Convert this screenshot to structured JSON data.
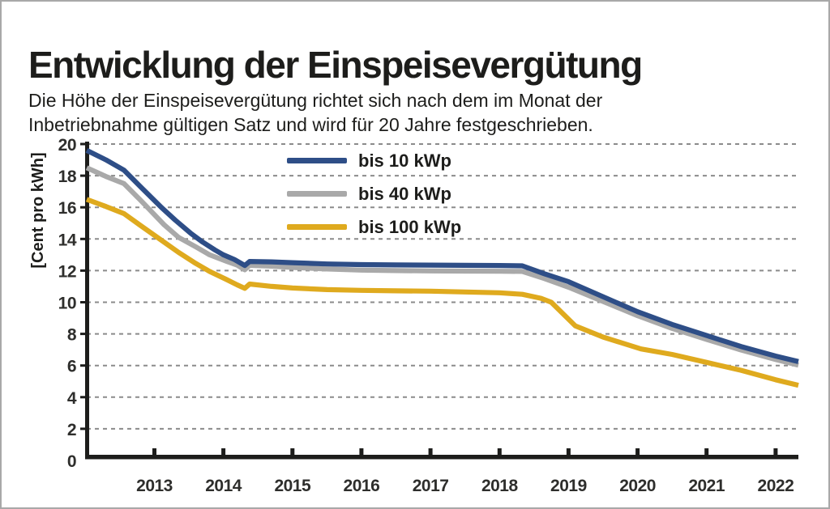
{
  "header": {
    "title": "Entwicklung der Einspeisevergütung",
    "subtitle": "Die Höhe der Einspeisevergütung richtet sich nach dem im Monat der\nInbetriebnahme gültigen Satz und wird für 20 Jahre festgeschrieben."
  },
  "chart_data": {
    "type": "line",
    "title": "Entwicklung der Einspeisevergütung",
    "xlabel": "",
    "ylabel": "[Cent pro kWh]",
    "ylim": [
      0,
      20
    ],
    "xlim": [
      2012.02,
      2022.33
    ],
    "yticks": [
      0,
      2,
      4,
      6,
      8,
      10,
      12,
      14,
      16,
      18,
      20
    ],
    "xticks": [
      2013,
      2014,
      2015,
      2016,
      2017,
      2018,
      2019,
      2020,
      2021,
      2022
    ],
    "grid": "horizontal-dashed",
    "grid_color": "#8b8b8b",
    "axis_color": "#1d1d1b",
    "legend_position": "top-left-inside",
    "series": [
      {
        "name": "bis 10 kWp",
        "color": "#2e4e87",
        "points": [
          [
            2012.02,
            19.6
          ],
          [
            2012.3,
            19.0
          ],
          [
            2012.56,
            18.35
          ],
          [
            2012.8,
            17.3
          ],
          [
            2013.1,
            16.0
          ],
          [
            2013.3,
            15.2
          ],
          [
            2013.53,
            14.35
          ],
          [
            2013.7,
            13.8
          ],
          [
            2013.88,
            13.3
          ],
          [
            2014.0,
            13.0
          ],
          [
            2014.16,
            12.7
          ],
          [
            2014.31,
            12.32
          ],
          [
            2014.38,
            12.58
          ],
          [
            2014.7,
            12.55
          ],
          [
            2015.0,
            12.5
          ],
          [
            2015.5,
            12.42
          ],
          [
            2016.0,
            12.38
          ],
          [
            2016.5,
            12.36
          ],
          [
            2017.0,
            12.35
          ],
          [
            2017.5,
            12.33
          ],
          [
            2018.0,
            12.32
          ],
          [
            2018.33,
            12.3
          ],
          [
            2018.65,
            11.8
          ],
          [
            2019.0,
            11.3
          ],
          [
            2019.5,
            10.35
          ],
          [
            2020.0,
            9.4
          ],
          [
            2020.5,
            8.6
          ],
          [
            2021.0,
            7.9
          ],
          [
            2021.5,
            7.2
          ],
          [
            2022.0,
            6.6
          ],
          [
            2022.33,
            6.25
          ]
        ]
      },
      {
        "name": "bis 40 kWp",
        "color": "#a9a9a9",
        "points": [
          [
            2012.02,
            18.5
          ],
          [
            2012.3,
            17.95
          ],
          [
            2012.56,
            17.5
          ],
          [
            2012.8,
            16.45
          ],
          [
            2013.14,
            14.9
          ],
          [
            2013.35,
            14.1
          ],
          [
            2013.6,
            13.5
          ],
          [
            2013.8,
            13.0
          ],
          [
            2014.04,
            12.6
          ],
          [
            2014.2,
            12.35
          ],
          [
            2014.31,
            12.05
          ],
          [
            2014.38,
            12.33
          ],
          [
            2014.7,
            12.28
          ],
          [
            2015.0,
            12.2
          ],
          [
            2015.5,
            12.1
          ],
          [
            2016.0,
            12.03
          ],
          [
            2016.5,
            12.0
          ],
          [
            2017.0,
            11.98
          ],
          [
            2017.5,
            11.97
          ],
          [
            2018.0,
            11.96
          ],
          [
            2018.33,
            11.95
          ],
          [
            2018.65,
            11.5
          ],
          [
            2019.0,
            10.95
          ],
          [
            2019.5,
            10.05
          ],
          [
            2020.0,
            9.15
          ],
          [
            2020.5,
            8.35
          ],
          [
            2021.0,
            7.65
          ],
          [
            2021.5,
            6.98
          ],
          [
            2022.0,
            6.38
          ],
          [
            2022.33,
            6.02
          ]
        ]
      },
      {
        "name": "bis 100 kWp",
        "color": "#dfaa1e",
        "points": [
          [
            2012.02,
            16.5
          ],
          [
            2012.3,
            16.05
          ],
          [
            2012.56,
            15.6
          ],
          [
            2012.8,
            14.85
          ],
          [
            2013.14,
            13.8
          ],
          [
            2013.35,
            13.15
          ],
          [
            2013.6,
            12.45
          ],
          [
            2013.8,
            11.95
          ],
          [
            2014.04,
            11.45
          ],
          [
            2014.2,
            11.1
          ],
          [
            2014.31,
            10.88
          ],
          [
            2014.38,
            11.15
          ],
          [
            2014.7,
            11.0
          ],
          [
            2015.0,
            10.9
          ],
          [
            2015.5,
            10.8
          ],
          [
            2016.0,
            10.75
          ],
          [
            2016.5,
            10.72
          ],
          [
            2017.0,
            10.7
          ],
          [
            2017.5,
            10.65
          ],
          [
            2018.0,
            10.6
          ],
          [
            2018.33,
            10.5
          ],
          [
            2018.6,
            10.25
          ],
          [
            2018.75,
            10.0
          ],
          [
            2019.1,
            8.5
          ],
          [
            2019.5,
            7.8
          ],
          [
            2020.05,
            7.05
          ],
          [
            2020.5,
            6.7
          ],
          [
            2021.0,
            6.2
          ],
          [
            2021.5,
            5.7
          ],
          [
            2022.0,
            5.1
          ],
          [
            2022.33,
            4.75
          ]
        ]
      }
    ]
  }
}
